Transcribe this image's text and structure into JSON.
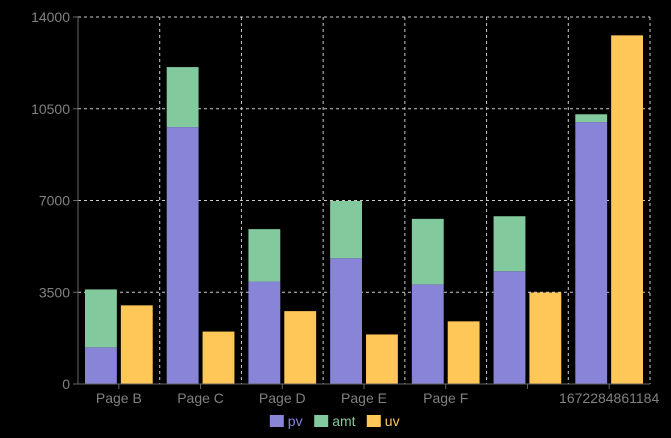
{
  "chart_data": {
    "type": "bar",
    "stacked_series": [
      "pv",
      "amt"
    ],
    "categories": [
      "Page B",
      "Page C",
      "Page D",
      "Page E",
      "Page F",
      "",
      "1672284861184"
    ],
    "series": [
      {
        "name": "pv",
        "color": "#8884d8",
        "stack": "a",
        "values": [
          1398,
          9800,
          3908,
          4800,
          3800,
          4300,
          9990
        ]
      },
      {
        "name": "amt",
        "color": "#82ca9d",
        "stack": "a",
        "values": [
          2210,
          2290,
          2000,
          2181,
          2500,
          2100,
          300
        ]
      },
      {
        "name": "uv",
        "color": "#ffc658",
        "stack": "b",
        "values": [
          3000,
          2000,
          2780,
          1890,
          2390,
          3490,
          13300
        ]
      }
    ],
    "yticks": [
      0,
      3500,
      7000,
      10500,
      14000
    ],
    "ylim": [
      0,
      14000
    ],
    "grid": true,
    "legend": "bottom-center"
  }
}
